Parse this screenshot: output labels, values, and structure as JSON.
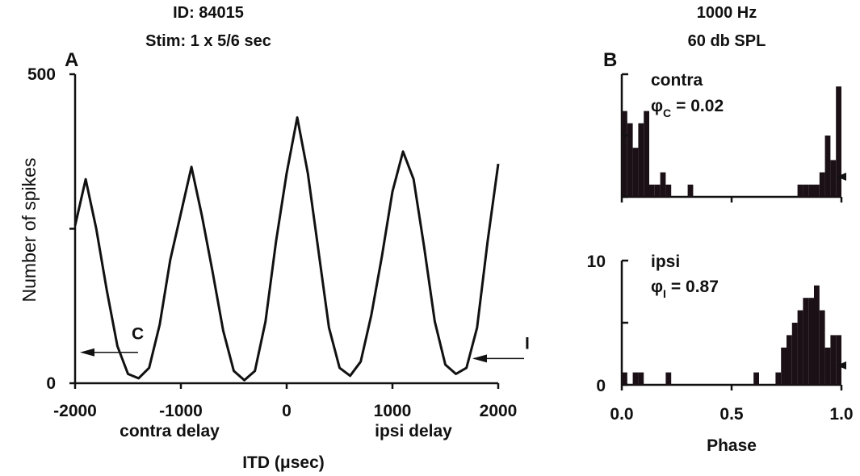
{
  "header": {
    "left_line1": "ID: 84015",
    "left_line2": "Stim: 1 x 5/6 sec",
    "right_line1": "1000 Hz",
    "right_line2": "60 db SPL"
  },
  "chart_data": [
    {
      "panel": "A",
      "type": "line",
      "xlabel": "ITD (μsec)",
      "ylabel": "Number of spikes",
      "xlim": [
        -2000,
        2000
      ],
      "ylim": [
        0,
        500
      ],
      "x_ticks": [
        -2000,
        -1000,
        0,
        1000,
        2000
      ],
      "x_tick_labels": [
        "-2000",
        "-1000",
        "0",
        "1000",
        "2000"
      ],
      "y_ticks": [
        0,
        250,
        500
      ],
      "y_tick_labels": [
        "0",
        "",
        "500"
      ],
      "sub_labels": [
        "contra delay",
        "ipsi delay"
      ],
      "markers": [
        {
          "label": "C",
          "side": "left",
          "y": 50
        },
        {
          "label": "I",
          "side": "right",
          "y": 40
        }
      ],
      "x": [
        -2000,
        -1900,
        -1800,
        -1700,
        -1600,
        -1500,
        -1400,
        -1300,
        -1200,
        -1100,
        -1000,
        -900,
        -800,
        -700,
        -600,
        -500,
        -400,
        -300,
        -200,
        -100,
        0,
        100,
        200,
        300,
        400,
        500,
        600,
        700,
        800,
        900,
        1000,
        1100,
        1200,
        1300,
        1400,
        1500,
        1600,
        1700,
        1800,
        1900,
        2000
      ],
      "y": [
        255,
        330,
        250,
        150,
        60,
        15,
        8,
        25,
        95,
        200,
        275,
        350,
        270,
        180,
        85,
        20,
        5,
        20,
        100,
        230,
        340,
        430,
        340,
        215,
        90,
        25,
        12,
        35,
        110,
        205,
        310,
        375,
        330,
        220,
        100,
        30,
        15,
        25,
        90,
        230,
        355
      ]
    },
    {
      "panel": "B",
      "type": "bar",
      "subplot": "contra",
      "label": "contra",
      "phase_symbol": "φ",
      "phase_sub": "C",
      "phase_value": "= 0.02",
      "xlim": [
        0,
        1
      ],
      "ylim": [
        0,
        10
      ],
      "bin_width": 0.025,
      "bins": [
        0.0,
        0.025,
        0.05,
        0.075,
        0.1,
        0.125,
        0.15,
        0.175,
        0.2,
        0.225,
        0.25,
        0.275,
        0.3,
        0.325,
        0.35,
        0.375,
        0.4,
        0.425,
        0.45,
        0.475,
        0.5,
        0.525,
        0.55,
        0.575,
        0.6,
        0.625,
        0.65,
        0.675,
        0.7,
        0.725,
        0.75,
        0.775,
        0.8,
        0.825,
        0.85,
        0.875,
        0.9,
        0.925,
        0.95,
        0.975
      ],
      "values": [
        7,
        6,
        4,
        6,
        7,
        1,
        1,
        2,
        1,
        0,
        0,
        0,
        1,
        0,
        0,
        0,
        0,
        0,
        0,
        0,
        0,
        0,
        0,
        0,
        0,
        0,
        0,
        0,
        0,
        0,
        0,
        0,
        1,
        1,
        1,
        1,
        2,
        5,
        3,
        9
      ]
    },
    {
      "panel": "B",
      "type": "bar",
      "subplot": "ipsi",
      "label": "ipsi",
      "phase_symbol": "φ",
      "phase_sub": "I",
      "phase_value": "= 0.87",
      "xlabel": "Phase",
      "xlim": [
        0,
        1
      ],
      "ylim": [
        0,
        10
      ],
      "x_ticks": [
        0,
        0.5,
        1.0
      ],
      "x_tick_labels": [
        "0.0",
        "0.5",
        "1.0"
      ],
      "y_ticks": [
        0,
        5,
        10
      ],
      "y_tick_labels": [
        "0",
        "",
        "10"
      ],
      "bin_width": 0.025,
      "bins": [
        0.0,
        0.025,
        0.05,
        0.075,
        0.1,
        0.125,
        0.15,
        0.175,
        0.2,
        0.225,
        0.25,
        0.275,
        0.3,
        0.325,
        0.35,
        0.375,
        0.4,
        0.425,
        0.45,
        0.475,
        0.5,
        0.525,
        0.55,
        0.575,
        0.6,
        0.625,
        0.65,
        0.675,
        0.7,
        0.725,
        0.75,
        0.775,
        0.8,
        0.825,
        0.85,
        0.875,
        0.9,
        0.925,
        0.95,
        0.975
      ],
      "values": [
        1,
        0,
        1,
        1,
        0,
        0,
        0,
        0,
        1,
        0,
        0,
        0,
        0,
        0,
        0,
        0,
        0,
        0,
        0,
        0,
        0,
        0,
        0,
        0,
        1,
        0,
        0,
        0,
        1,
        3,
        4,
        5,
        6,
        7,
        7,
        8,
        6,
        3,
        4,
        4
      ]
    }
  ]
}
